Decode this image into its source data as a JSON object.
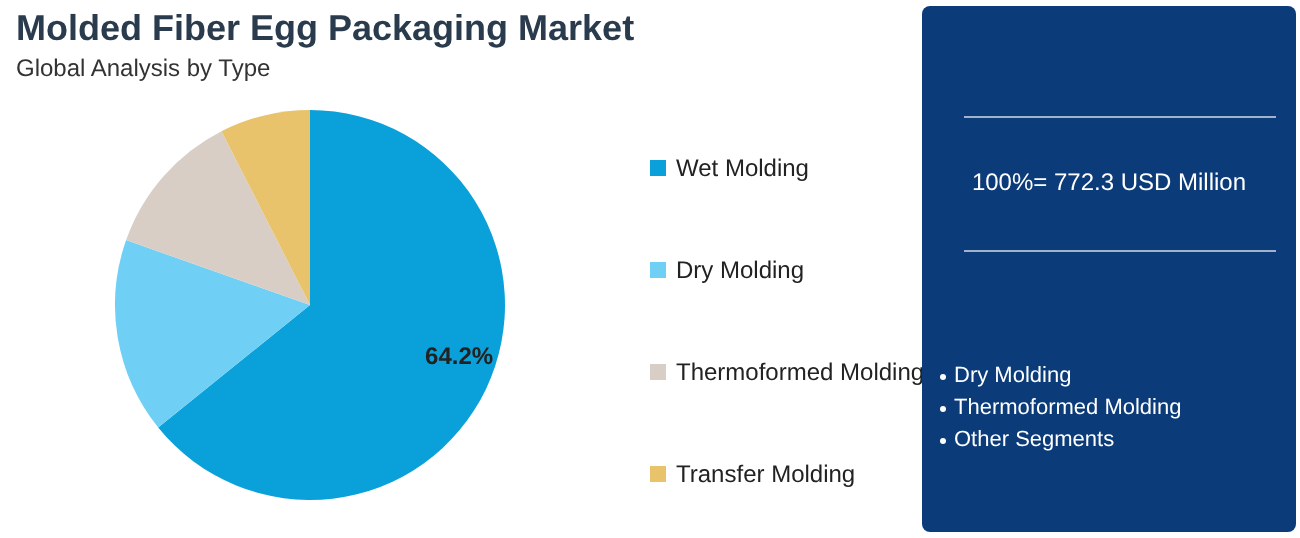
{
  "chart_data": {
    "type": "pie",
    "title": "Molded Fiber Egg Packaging Market",
    "subtitle": "Global Analysis by Type",
    "categories": [
      "Wet Molding",
      "Dry Molding",
      "Thermoformed Molding",
      "Transfer Molding"
    ],
    "values": [
      64.2,
      16.2,
      12.1,
      7.5
    ],
    "colors": [
      "#0aa0d9",
      "#6fcff5",
      "#d8cec6",
      "#e8c36c"
    ],
    "value_labels": [
      "64.2%",
      null,
      null,
      null
    ],
    "legend": "right",
    "annotations": [
      "100%= 772.3 USD Million",
      "Dry Molding",
      "Thermoformed Molding",
      "Other Segments"
    ]
  }
}
